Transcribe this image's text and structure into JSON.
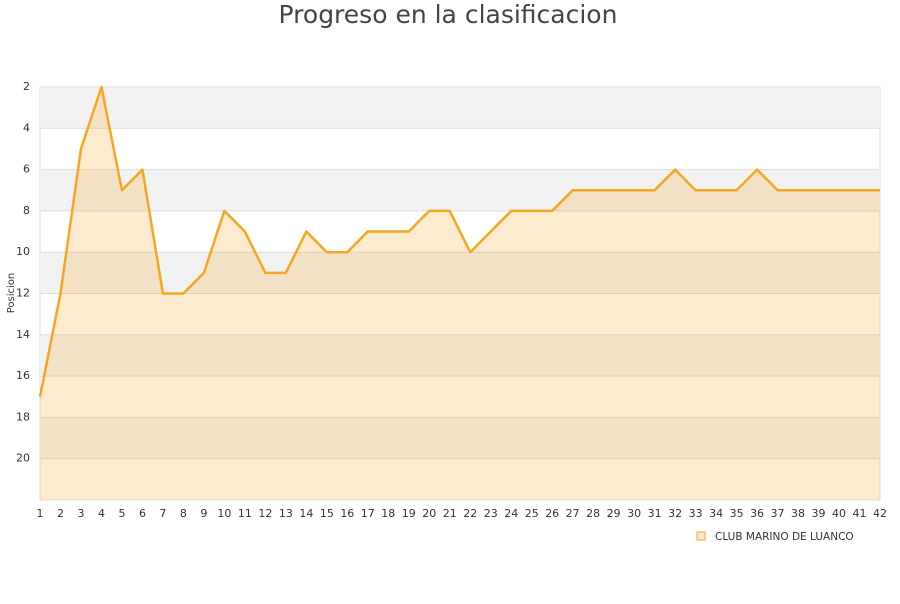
{
  "chart_data": {
    "type": "area-line",
    "title": "Progreso en la clasificacion",
    "y_label": "Posicion",
    "x": [
      1,
      2,
      3,
      4,
      5,
      6,
      7,
      8,
      9,
      10,
      11,
      12,
      13,
      14,
      15,
      16,
      17,
      18,
      19,
      20,
      21,
      22,
      23,
      24,
      25,
      26,
      27,
      28,
      29,
      30,
      31,
      32,
      33,
      34,
      35,
      36,
      37,
      38,
      39,
      40,
      41,
      42
    ],
    "series": [
      {
        "name": "CLUB MARINO DE LUANCO",
        "color": "#f5a623",
        "values": [
          17,
          12,
          5,
          2,
          7,
          6,
          12,
          12,
          11,
          8,
          9,
          11,
          11,
          9,
          10,
          10,
          9,
          9,
          9,
          8,
          8,
          10,
          9,
          8,
          8,
          8,
          7,
          7,
          7,
          7,
          7,
          6,
          7,
          7,
          7,
          6,
          7,
          7,
          7,
          7,
          7,
          7
        ]
      }
    ],
    "xlim": [
      1,
      42
    ],
    "xticks": [
      1,
      2,
      3,
      4,
      5,
      6,
      7,
      8,
      9,
      10,
      11,
      12,
      13,
      14,
      15,
      16,
      17,
      18,
      19,
      20,
      21,
      22,
      23,
      24,
      25,
      26,
      27,
      28,
      29,
      30,
      31,
      32,
      33,
      34,
      35,
      36,
      37,
      38,
      39,
      40,
      41,
      42
    ],
    "ylim": [
      22,
      2
    ],
    "yticks": [
      2,
      4,
      6,
      8,
      10,
      12,
      14,
      16,
      18,
      20
    ],
    "grid": true
  }
}
